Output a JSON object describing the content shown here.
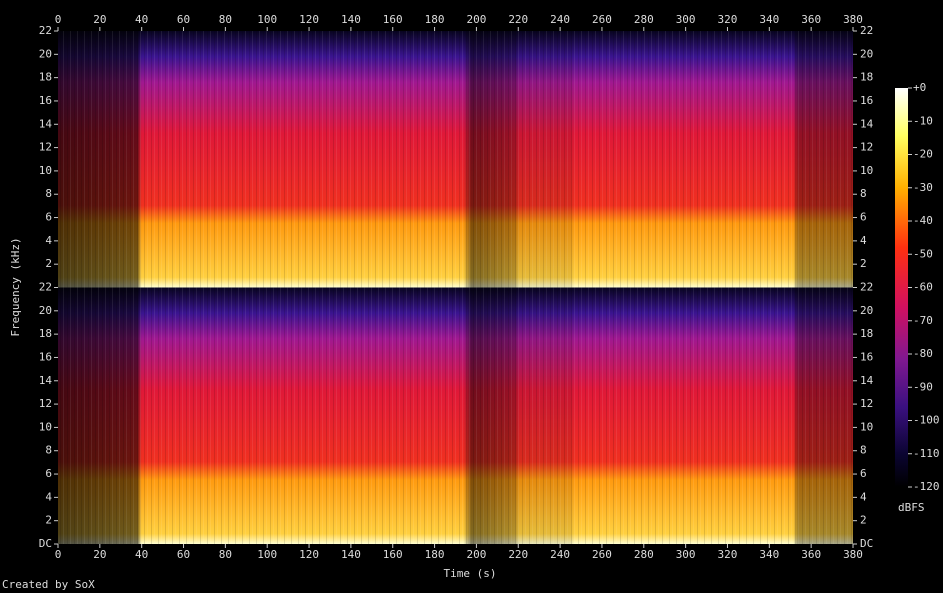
{
  "chart_data": {
    "type": "spectrogram",
    "xlabel": "Time (s)",
    "ylabel": "Frequency (kHz)",
    "xlim": [
      0,
      380
    ],
    "xticks": [
      0,
      20,
      40,
      60,
      80,
      100,
      120,
      140,
      160,
      180,
      200,
      220,
      240,
      260,
      280,
      300,
      320,
      340,
      360,
      380
    ],
    "channels": [
      {
        "ylim": [
          0,
          22
        ],
        "yticks": [
          2,
          4,
          6,
          8,
          10,
          12,
          14,
          16,
          18,
          20,
          22
        ]
      },
      {
        "ylim": [
          0,
          22
        ],
        "yticks": [
          {
            "value": 0,
            "label": "DC"
          },
          2,
          4,
          6,
          8,
          10,
          12,
          14,
          16,
          18,
          20,
          22
        ]
      }
    ],
    "colorbar": {
      "label": "dBFS",
      "zlim": [
        -120,
        0
      ],
      "zticks": [
        {
          "value": 0,
          "label": "+0"
        },
        -10,
        -20,
        -30,
        -40,
        -50,
        -60,
        -70,
        -80,
        -90,
        -100,
        -110,
        -120
      ]
    },
    "footer": "Created by SoX"
  }
}
